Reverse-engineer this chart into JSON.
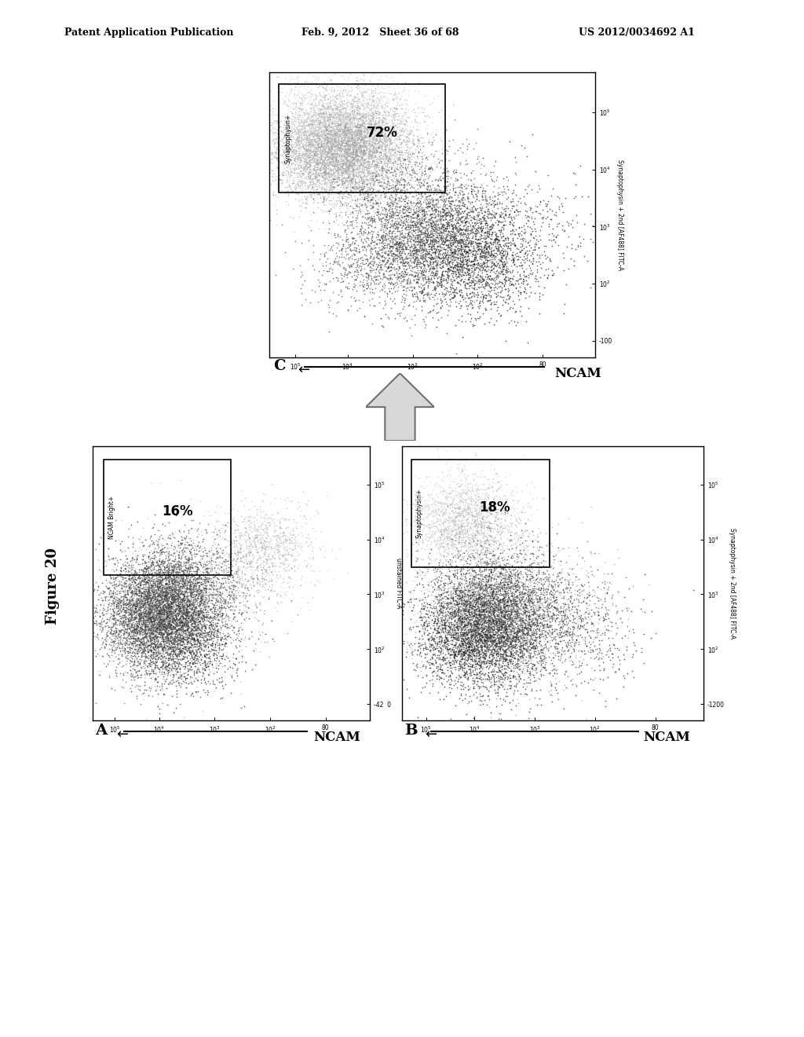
{
  "header_left": "Patent Application Publication",
  "header_mid": "Feb. 9, 2012   Sheet 36 of 68",
  "header_right": "US 2012/0034692 A1",
  "figure_label": "Figure 20",
  "panel_A_gate": "NCAM Bright+",
  "panel_A_pct": "16%",
  "panel_A_ylabel": "unstained FITC-A",
  "panel_A_label": "A",
  "panel_B_gate": "Synaptophysin+",
  "panel_B_pct": "18%",
  "panel_B_ylabel": "Synaptophysin + 2nd [AF488] FITC-A",
  "panel_B_label": "B",
  "panel_C_gate": "Synaptophysin+",
  "panel_C_pct": "72%",
  "panel_C_ylabel": "Synaptophysin + 2nd [AF488] FITC-A",
  "panel_C_label": "C",
  "ncam_label": "NCAM",
  "x_ticklabels_rev": [
    "10^5",
    "10^4",
    "10^3",
    "10^2",
    "80"
  ],
  "y_ticklabels_A": [
    "-42  0",
    "10^2",
    "10^3",
    "10^4",
    "10^5"
  ],
  "y_ticklabels_B": [
    "-1200",
    "10^2",
    "10^3",
    "10^4",
    "10^5"
  ],
  "y_ticklabels_C": [
    "-100",
    "10^2",
    "10^3",
    "10^4",
    "10^5"
  ],
  "bg_color": "#ffffff"
}
